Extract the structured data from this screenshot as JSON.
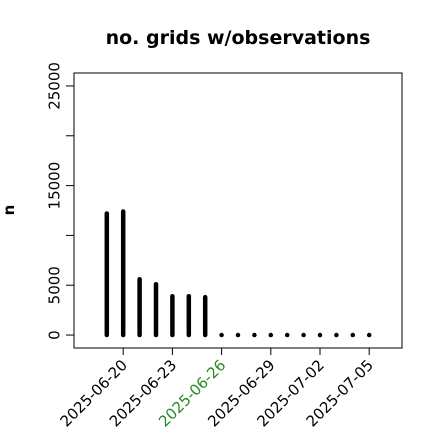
{
  "chart_data": {
    "type": "bar",
    "title": "no. grids w/observations",
    "xlabel": "",
    "ylabel": "n",
    "x": [
      "2025-06-19",
      "2025-06-20",
      "2025-06-21",
      "2025-06-22",
      "2025-06-23",
      "2025-06-24",
      "2025-06-25",
      "2025-06-26",
      "2025-06-27",
      "2025-06-28",
      "2025-06-29",
      "2025-06-30",
      "2025-07-01",
      "2025-07-02",
      "2025-07-03",
      "2025-07-04",
      "2025-07-05"
    ],
    "values": [
      12200,
      12400,
      5600,
      5100,
      3900,
      3900,
      3800,
      0,
      0,
      0,
      0,
      0,
      0,
      0,
      0,
      0,
      0
    ],
    "xlim": [
      "2025-06-17",
      "2025-07-07"
    ],
    "ylim": [
      -1300,
      26300
    ],
    "yticks": [
      0,
      5000,
      15000,
      25000
    ],
    "yticks_minor": [
      10000,
      20000
    ],
    "xticks": [
      {
        "date": "2025-06-20",
        "label": "2025-06-20",
        "color": "#000000"
      },
      {
        "date": "2025-06-23",
        "label": "2025-06-23",
        "color": "#000000"
      },
      {
        "date": "2025-06-26",
        "label": "2025-06-26",
        "color": "#228B22"
      },
      {
        "date": "2025-06-29",
        "label": "2025-06-29",
        "color": "#000000"
      },
      {
        "date": "2025-07-02",
        "label": "2025-07-02",
        "color": "#000000"
      },
      {
        "date": "2025-07-05",
        "label": "2025-07-05",
        "color": "#000000"
      }
    ],
    "bar_color": "#000000",
    "grid": false,
    "legend": "none"
  }
}
